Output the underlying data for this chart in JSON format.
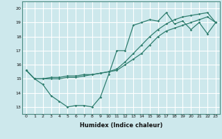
{
  "xlabel": "Humidex (Indice chaleur)",
  "bg_color": "#cde8ec",
  "grid_color": "#ffffff",
  "line_color": "#2e7d6e",
  "xlim": [
    -0.5,
    23.5
  ],
  "ylim": [
    12.5,
    20.5
  ],
  "yticks": [
    13,
    14,
    15,
    16,
    17,
    18,
    19,
    20
  ],
  "xticks": [
    0,
    1,
    2,
    3,
    4,
    5,
    6,
    7,
    8,
    9,
    10,
    11,
    12,
    13,
    14,
    15,
    16,
    17,
    18,
    19,
    20,
    21,
    22,
    23
  ],
  "line1_x": [
    0,
    1,
    2,
    3,
    4,
    5,
    6,
    7,
    8,
    9,
    10,
    11,
    12,
    13,
    14,
    15,
    16,
    17,
    18,
    19,
    20,
    21,
    22,
    23
  ],
  "line1_y": [
    15.6,
    15.0,
    14.6,
    13.8,
    13.4,
    13.0,
    13.1,
    13.1,
    13.0,
    13.7,
    15.3,
    17.0,
    17.0,
    18.8,
    19.0,
    19.2,
    19.1,
    19.7,
    18.9,
    19.1,
    18.5,
    19.0,
    18.2,
    19.0
  ],
  "line2_x": [
    0,
    1,
    2,
    3,
    4,
    5,
    6,
    7,
    8,
    9,
    10,
    11,
    12,
    13,
    14,
    15,
    16,
    17,
    18,
    19,
    20,
    21,
    22,
    23
  ],
  "line2_y": [
    15.6,
    15.0,
    15.0,
    15.0,
    15.0,
    15.1,
    15.1,
    15.2,
    15.3,
    15.4,
    15.5,
    15.6,
    16.0,
    16.4,
    16.8,
    17.4,
    18.0,
    18.4,
    18.6,
    18.8,
    19.0,
    19.2,
    19.4,
    19.0
  ],
  "line3_x": [
    0,
    1,
    2,
    3,
    4,
    5,
    6,
    7,
    8,
    9,
    10,
    11,
    12,
    13,
    14,
    15,
    16,
    17,
    18,
    19,
    20,
    21,
    22,
    23
  ],
  "line3_y": [
    15.6,
    15.0,
    15.0,
    15.1,
    15.1,
    15.2,
    15.2,
    15.3,
    15.3,
    15.4,
    15.5,
    15.7,
    16.2,
    16.8,
    17.4,
    18.0,
    18.5,
    18.9,
    19.2,
    19.4,
    19.5,
    19.6,
    19.7,
    19.0
  ]
}
